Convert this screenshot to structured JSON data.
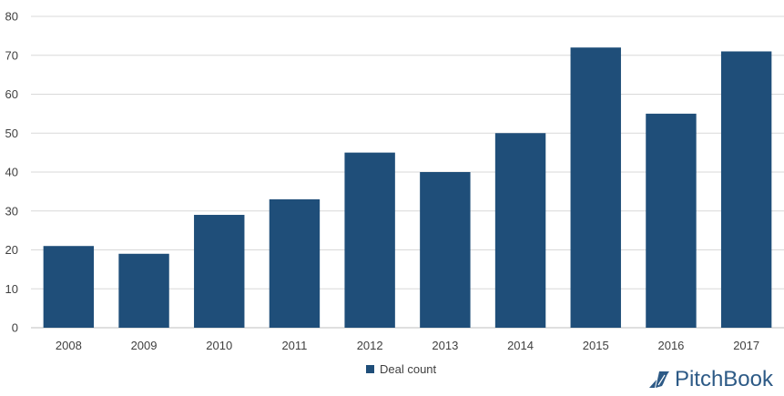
{
  "chart_data": {
    "type": "bar",
    "categories": [
      "2008",
      "2009",
      "2010",
      "2011",
      "2012",
      "2013",
      "2014",
      "2015",
      "2016",
      "2017"
    ],
    "series": [
      {
        "name": "Deal count",
        "values": [
          21,
          19,
          29,
          33,
          45,
          40,
          50,
          72,
          55,
          71
        ]
      }
    ],
    "title": "",
    "xlabel": "",
    "ylabel": "",
    "ylim": [
      0,
      80
    ],
    "yticks": [
      "0",
      "10",
      "20",
      "30",
      "40",
      "50",
      "60",
      "70",
      "80"
    ],
    "grid": true,
    "legend_position": "bottom-center",
    "bar_color": "#1f4e79"
  },
  "legend": {
    "label": "Deal count"
  },
  "brand": {
    "name": "PitchBook",
    "icon": "pitchbook-logo-icon",
    "color": "#2d5a86"
  }
}
